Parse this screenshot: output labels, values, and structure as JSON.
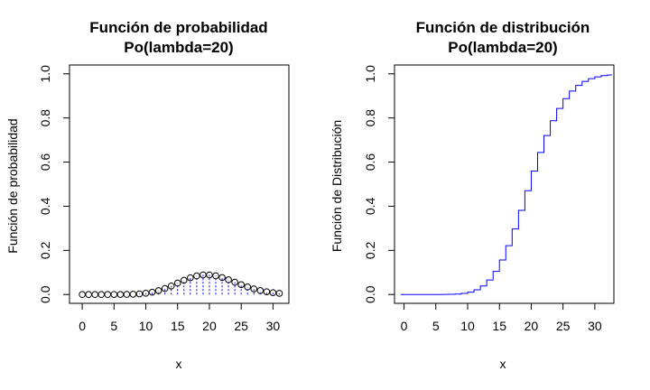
{
  "chart_data": [
    {
      "type": "scatter",
      "title": "Función de probabilidad",
      "subtitle": "Po(lambda=20)",
      "xlabel": "x",
      "ylabel": "Función de probabilidad",
      "xlim": [
        -2,
        32.5
      ],
      "ylim": [
        -0.04,
        1.04
      ],
      "xticks": [
        0,
        5,
        10,
        15,
        20,
        25,
        30
      ],
      "yticks": [
        0.0,
        0.2,
        0.4,
        0.6,
        0.8,
        1.0
      ],
      "xtick_labels": [
        "0",
        "5",
        "10",
        "15",
        "20",
        "25",
        "30"
      ],
      "ytick_labels": [
        "0.0",
        "0.2",
        "0.4",
        "0.6",
        "0.8",
        "1.0"
      ],
      "grid": false,
      "series": [
        {
          "style": "points-with-vertical-lines",
          "x": [
            0,
            1,
            2,
            3,
            4,
            5,
            6,
            7,
            8,
            9,
            10,
            11,
            12,
            13,
            14,
            15,
            16,
            17,
            18,
            19,
            20,
            21,
            22,
            23,
            24,
            25,
            26,
            27,
            28,
            29,
            30,
            31
          ],
          "y": [
            0.0,
            0.0,
            0.0,
            0.0,
            0.0,
            0.0001,
            0.0002,
            0.0005,
            0.0013,
            0.0029,
            0.0058,
            0.0106,
            0.0176,
            0.0271,
            0.0387,
            0.0516,
            0.0646,
            0.076,
            0.0844,
            0.0888,
            0.0888,
            0.0846,
            0.0769,
            0.0669,
            0.0557,
            0.0446,
            0.0343,
            0.0254,
            0.0181,
            0.0125,
            0.0083,
            0.0054
          ]
        }
      ],
      "colors": {
        "points": "#000000",
        "lines": "#0000ff",
        "frame": "#000000"
      }
    },
    {
      "type": "line",
      "title": "Función de distribución",
      "subtitle": "Po(lambda=20)",
      "xlabel": "x",
      "ylabel": "Función de Distribución",
      "xlim": [
        -1.5,
        33
      ],
      "ylim": [
        -0.04,
        1.04
      ],
      "xticks": [
        0,
        5,
        10,
        15,
        20,
        25,
        30
      ],
      "yticks": [
        0.0,
        0.2,
        0.4,
        0.6,
        0.8,
        1.0
      ],
      "xtick_labels": [
        "0",
        "5",
        "10",
        "15",
        "20",
        "25",
        "30"
      ],
      "ytick_labels": [
        "0.0",
        "0.2",
        "0.4",
        "0.6",
        "0.8",
        "1.0"
      ],
      "grid": false,
      "series": [
        {
          "style": "step",
          "x": [
            -0.5,
            0,
            1,
            2,
            3,
            4,
            5,
            6,
            7,
            8,
            9,
            10,
            11,
            12,
            13,
            14,
            15,
            16,
            17,
            18,
            19,
            20,
            21,
            22,
            23,
            24,
            25,
            26,
            27,
            28,
            29,
            30,
            31,
            32
          ],
          "y": [
            0.0,
            0.0,
            0.0,
            0.0,
            0.0,
            0.0,
            0.0001,
            0.0003,
            0.0008,
            0.0021,
            0.005,
            0.0108,
            0.0214,
            0.039,
            0.0661,
            0.1049,
            0.1565,
            0.2211,
            0.297,
            0.3814,
            0.4703,
            0.5591,
            0.6437,
            0.7206,
            0.7875,
            0.8432,
            0.8878,
            0.9221,
            0.9475,
            0.9657,
            0.9782,
            0.9865,
            0.9919,
            0.9952
          ]
        }
      ],
      "colors": {
        "line": "#0000ff",
        "frame": "#000000"
      }
    }
  ]
}
